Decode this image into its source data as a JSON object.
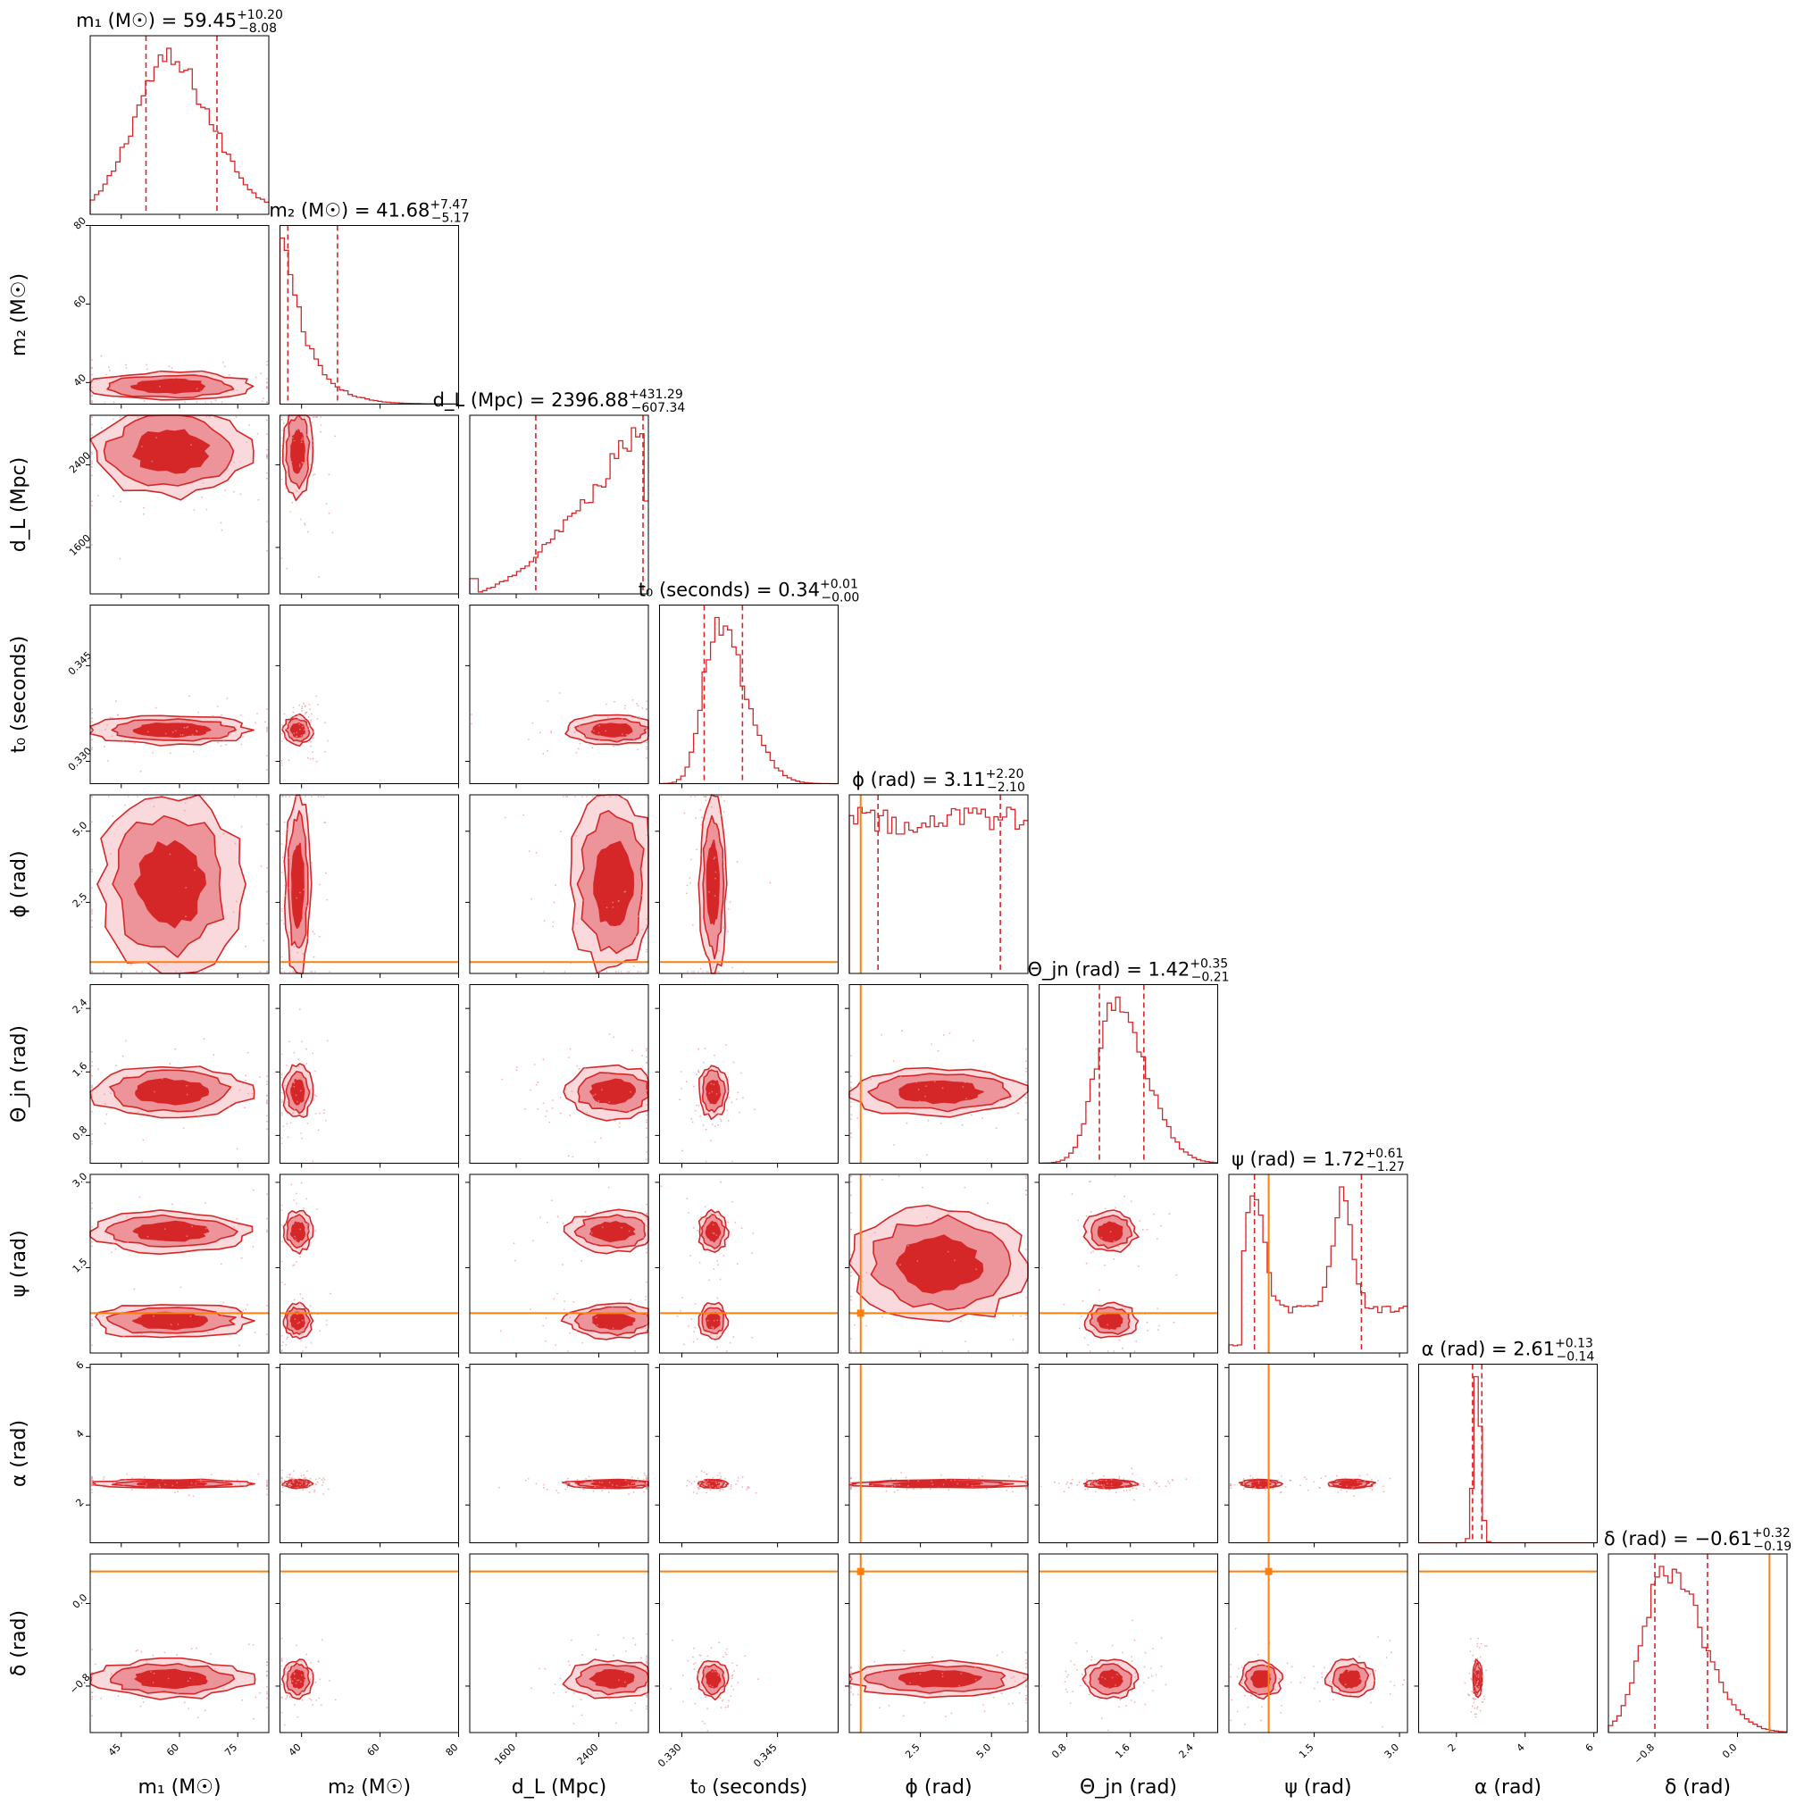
{
  "chart_data": {
    "type": "corner",
    "colors": {
      "posterior": "#d62728",
      "contour_dark": "#d62728",
      "contour_mid": "#ec949a",
      "contour_light": "#f8d2d6",
      "truth": "#ff7f0e"
    },
    "parameters": [
      {
        "key": "m1",
        "axis_label": "m₁ (M☉)",
        "title": "m₁ (M☉) = 59.45",
        "err_plus": "+10.20",
        "err_minus": "−8.08",
        "range": [
          37,
          83
        ],
        "ticks": [
          45,
          60,
          75
        ],
        "tick_labels": [
          "45",
          "60",
          "75"
        ],
        "median": 59.45,
        "lo": 51.37,
        "hi": 69.65,
        "truth": null,
        "hist_mode": "peak",
        "hist_peak": 57
      },
      {
        "key": "m2",
        "axis_label": "m₂ (M☉)",
        "title": "m₂ (M☉) = 41.68",
        "err_plus": "+7.47",
        "err_minus": "−5.17",
        "range": [
          34.5,
          80
        ],
        "ticks": [
          40,
          60,
          80
        ],
        "tick_labels": [
          "40",
          "60",
          "80"
        ],
        "median": 41.68,
        "lo": 36.51,
        "hi": 49.15,
        "truth": null,
        "hist_mode": "left",
        "hist_peak": 36
      },
      {
        "key": "dL",
        "axis_label": "d_L (Mpc)",
        "title": "d_L (Mpc) = 2396.88",
        "err_plus": "+431.29",
        "err_minus": "−607.34",
        "range": [
          1150,
          2880
        ],
        "ticks": [
          1600,
          2400
        ],
        "tick_labels": [
          "1600",
          "2400"
        ],
        "median": 2396.88,
        "lo": 1789.54,
        "hi": 2828.17,
        "truth": null,
        "hist_mode": "right",
        "hist_peak": 2820
      },
      {
        "key": "t0",
        "axis_label": "t₀ (seconds)",
        "title": "t₀ (seconds) = 0.34",
        "err_plus": "+0.01",
        "err_minus": "−0.00",
        "range": [
          0.3265,
          0.3545
        ],
        "ticks": [
          0.33,
          0.345
        ],
        "tick_labels": [
          "0.330",
          "0.345"
        ],
        "median": 0.3355,
        "lo": 0.3335,
        "hi": 0.3395,
        "truth": null,
        "hist_mode": "peak",
        "hist_peak": 0.3355
      },
      {
        "key": "phi",
        "axis_label": "ϕ (rad)",
        "title": "ϕ (rad) = 3.11",
        "err_plus": "+2.20",
        "err_minus": "−2.10",
        "range": [
          0,
          6.28
        ],
        "ticks": [
          2.5,
          5.0
        ],
        "tick_labels": [
          "2.5",
          "5.0"
        ],
        "median": 3.11,
        "lo": 1.01,
        "hi": 5.31,
        "truth": 0.4,
        "hist_mode": "flat",
        "hist_peak": 3.1
      },
      {
        "key": "theta_jn",
        "axis_label": "Θ_jn (rad)",
        "title": "Θ_jn (rad) = 1.42",
        "err_plus": "+0.35",
        "err_minus": "−0.21",
        "range": [
          0.45,
          2.7
        ],
        "ticks": [
          0.8,
          1.6,
          2.4
        ],
        "tick_labels": [
          "0.8",
          "1.6",
          "2.4"
        ],
        "median": 1.42,
        "lo": 1.21,
        "hi": 1.77,
        "truth": null,
        "hist_mode": "peak",
        "hist_peak": 1.4
      },
      {
        "key": "psi",
        "axis_label": "ψ (rad)",
        "title": "ψ (rad) = 1.72",
        "err_plus": "+0.61",
        "err_minus": "−1.27",
        "range": [
          0,
          3.14
        ],
        "ticks": [
          1.5,
          3.0
        ],
        "tick_labels": [
          "1.5",
          "3.0"
        ],
        "median": 1.72,
        "lo": 0.45,
        "hi": 2.33,
        "truth": 0.7,
        "hist_mode": "bimodal",
        "hist_peak": 0.45
      },
      {
        "key": "alpha",
        "axis_label": "α (rad)",
        "title": "α (rad) = 2.61",
        "err_plus": "+0.13",
        "err_minus": "−0.14",
        "range": [
          0.9,
          6.1
        ],
        "ticks": [
          2,
          4,
          6
        ],
        "tick_labels": [
          "2",
          "4",
          "6"
        ],
        "median": 2.61,
        "lo": 2.47,
        "hi": 2.74,
        "truth": null,
        "hist_mode": "narrow",
        "hist_peak": 2.61
      },
      {
        "key": "delta",
        "axis_label": "δ (rad)",
        "title": "δ (rad) = −0.61",
        "err_plus": "+0.32",
        "err_minus": "−0.19",
        "range": [
          -1.25,
          0.48
        ],
        "ticks": [
          -0.8,
          0.0
        ],
        "tick_labels": [
          "−0.8",
          "0.0"
        ],
        "median": -0.61,
        "lo": -0.8,
        "hi": -0.29,
        "truth": 0.31,
        "hist_mode": "peak",
        "hist_peak": -0.7
      }
    ]
  }
}
